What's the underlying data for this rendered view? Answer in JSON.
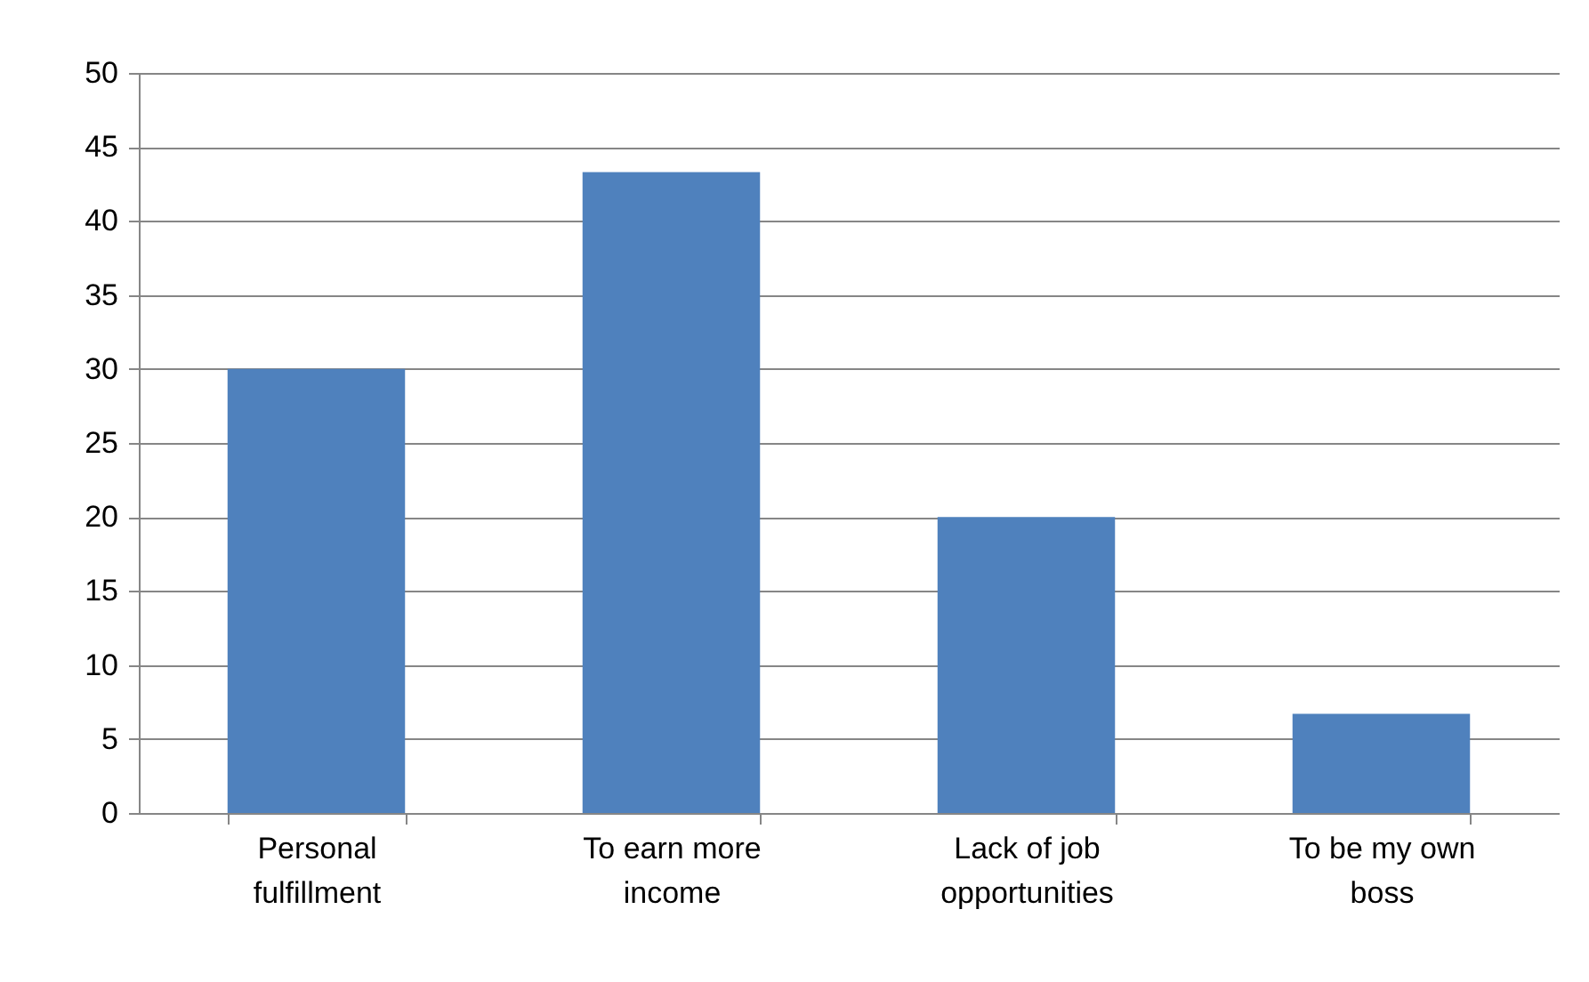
{
  "chart_data": {
    "type": "bar",
    "categories": [
      "Personal fulfillment",
      "To earn more income",
      "Lack of job opportunities",
      "To be my own boss"
    ],
    "values": [
      30,
      43.3,
      20,
      6.7
    ],
    "color": "#4f81bd",
    "ylim": [
      0,
      50
    ],
    "yticks": [
      0,
      5,
      10,
      15,
      20,
      25,
      30,
      35,
      40,
      45,
      50
    ],
    "grid": "y"
  }
}
